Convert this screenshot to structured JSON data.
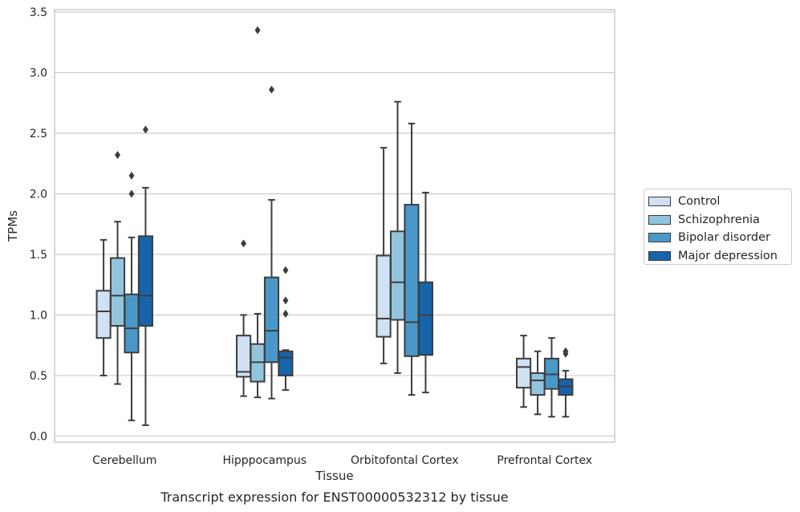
{
  "chart_data": {
    "type": "box",
    "title": "Transcript expression for ENST00000532312 by tissue",
    "xlabel": "Tissue",
    "ylabel": "TPMs",
    "ylim": [
      -0.05,
      3.52
    ],
    "yticks": [
      0.0,
      0.5,
      1.0,
      1.5,
      2.0,
      2.5,
      3.0,
      3.5
    ],
    "ytick_labels": [
      "0.0",
      "0.5",
      "1.0",
      "1.5",
      "2.0",
      "2.5",
      "3.0",
      "3.5"
    ],
    "categories": [
      "Cerebellum",
      "Hipppocampus",
      "Orbitofontal Cortex",
      "Prefrontal Cortex"
    ],
    "grid": "horizontal",
    "legend_position": "outside-right",
    "series": [
      {
        "name": "Control",
        "color": "#cfe1f2",
        "boxes": [
          {
            "whislo": 0.5,
            "q1": 0.81,
            "med": 1.03,
            "q3": 1.2,
            "whishi": 1.62,
            "fliers": []
          },
          {
            "whislo": 0.33,
            "q1": 0.49,
            "med": 0.53,
            "q3": 0.83,
            "whishi": 1.0,
            "fliers": [
              1.59
            ]
          },
          {
            "whislo": 0.6,
            "q1": 0.82,
            "med": 0.97,
            "q3": 1.49,
            "whishi": 2.38,
            "fliers": []
          },
          {
            "whislo": 0.24,
            "q1": 0.4,
            "med": 0.57,
            "q3": 0.64,
            "whishi": 0.83,
            "fliers": []
          }
        ]
      },
      {
        "name": "Schizophrenia",
        "color": "#93c4de",
        "boxes": [
          {
            "whislo": 0.43,
            "q1": 0.91,
            "med": 1.16,
            "q3": 1.47,
            "whishi": 1.77,
            "fliers": [
              2.32
            ]
          },
          {
            "whislo": 0.32,
            "q1": 0.45,
            "med": 0.61,
            "q3": 0.76,
            "whishi": 1.01,
            "fliers": [
              3.35
            ]
          },
          {
            "whislo": 0.52,
            "q1": 0.96,
            "med": 1.27,
            "q3": 1.69,
            "whishi": 2.76,
            "fliers": []
          },
          {
            "whislo": 0.18,
            "q1": 0.34,
            "med": 0.46,
            "q3": 0.52,
            "whishi": 0.7,
            "fliers": []
          }
        ]
      },
      {
        "name": "Bipolar disorder",
        "color": "#4a98c9",
        "boxes": [
          {
            "whislo": 0.13,
            "q1": 0.69,
            "med": 0.89,
            "q3": 1.17,
            "whishi": 1.64,
            "fliers": [
              2.15,
              2.0
            ]
          },
          {
            "whislo": 0.31,
            "q1": 0.61,
            "med": 0.87,
            "q3": 1.31,
            "whishi": 1.95,
            "fliers": [
              2.86
            ]
          },
          {
            "whislo": 0.34,
            "q1": 0.66,
            "med": 0.94,
            "q3": 1.91,
            "whishi": 2.58,
            "fliers": []
          },
          {
            "whislo": 0.16,
            "q1": 0.39,
            "med": 0.51,
            "q3": 0.64,
            "whishi": 0.81,
            "fliers": []
          }
        ]
      },
      {
        "name": "Major depression",
        "color": "#1764ab",
        "boxes": [
          {
            "whislo": 0.09,
            "q1": 0.91,
            "med": 1.16,
            "q3": 1.65,
            "whishi": 2.05,
            "fliers": [
              2.53
            ]
          },
          {
            "whislo": 0.38,
            "q1": 0.5,
            "med": 0.65,
            "q3": 0.7,
            "whishi": 0.71,
            "fliers": [
              1.37,
              1.12,
              1.01
            ]
          },
          {
            "whislo": 0.36,
            "q1": 0.67,
            "med": 1.0,
            "q3": 1.27,
            "whishi": 2.01,
            "fliers": []
          },
          {
            "whislo": 0.16,
            "q1": 0.34,
            "med": 0.41,
            "q3": 0.47,
            "whishi": 0.54,
            "fliers": [
              0.7,
              0.68
            ]
          }
        ]
      }
    ]
  }
}
